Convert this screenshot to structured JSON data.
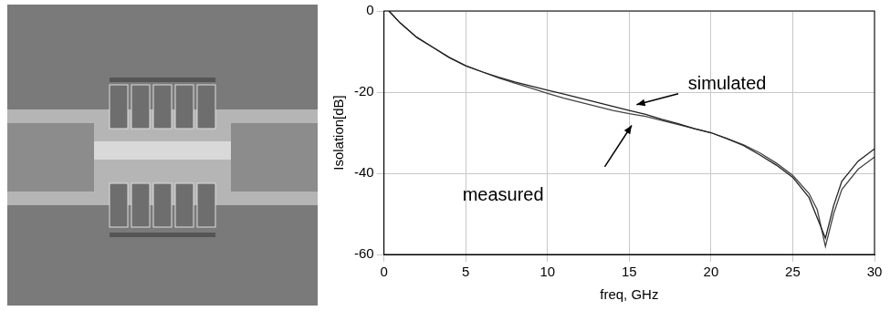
{
  "chart_data": {
    "type": "line",
    "x_label": "freq, GHz",
    "y_label": "Isolation[dB]",
    "xlim": [
      0,
      30
    ],
    "xticks": [
      0,
      5,
      10,
      15,
      20,
      25,
      30
    ],
    "ylim": [
      -60,
      0
    ],
    "yticks": [
      -60,
      -40,
      -20,
      0
    ],
    "grid": true,
    "x": [
      0.3,
      1,
      2,
      3,
      4,
      5,
      6,
      7,
      8,
      9,
      10,
      11,
      12,
      13,
      14,
      15,
      16,
      17,
      18,
      19,
      20,
      21,
      22,
      23,
      24,
      25,
      26,
      26.5,
      27,
      27.5,
      28,
      29,
      30
    ],
    "series": [
      {
        "name": "simulated",
        "color": "#222222",
        "values": [
          0,
          -3,
          -6.5,
          -9,
          -11.5,
          -13.5,
          -15,
          -16.3,
          -17.5,
          -18.5,
          -19.5,
          -20.5,
          -21.5,
          -22.5,
          -23.5,
          -24.5,
          -25.5,
          -26.7,
          -27.8,
          -29,
          -30,
          -31.5,
          -33.2,
          -35.5,
          -38,
          -41,
          -46,
          -51,
          -56,
          -48,
          -42,
          -37,
          -34
        ]
      },
      {
        "name": "measured",
        "color": "#444444",
        "values": [
          0,
          -3,
          -6.5,
          -9,
          -11.5,
          -13.5,
          -15,
          -16.5,
          -17.8,
          -19,
          -20.3,
          -21.5,
          -22.5,
          -23.5,
          -24.5,
          -25.3,
          -26,
          -27,
          -28,
          -29,
          -30,
          -31.5,
          -33,
          -35,
          -37.5,
          -40.5,
          -45,
          -49,
          -58,
          -50,
          -44,
          -39,
          -36
        ]
      }
    ]
  }
}
